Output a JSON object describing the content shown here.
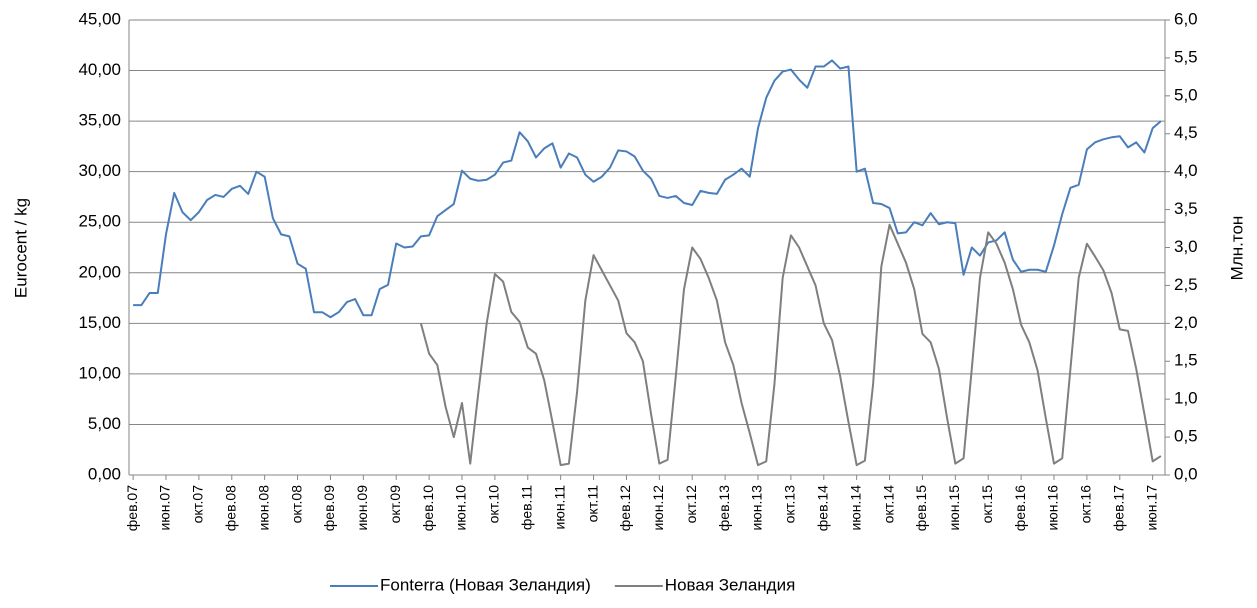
{
  "chart_data": {
    "type": "line",
    "y_label": "Eurocent / kg",
    "y2_label": "Млн.тон",
    "categories": [
      "фев.07",
      null,
      null,
      null,
      "июн.07",
      null,
      null,
      null,
      "окт.07",
      null,
      null,
      null,
      "фев.08",
      null,
      null,
      null,
      "июн.08",
      null,
      null,
      null,
      "окт.08",
      null,
      null,
      null,
      "фев.09",
      null,
      null,
      null,
      "июн.09",
      null,
      null,
      null,
      "окт.09",
      null,
      null,
      null,
      "фев.10",
      null,
      null,
      null,
      "июн.10",
      null,
      null,
      null,
      "окт.10",
      null,
      null,
      null,
      "фев.11",
      null,
      null,
      null,
      "июн.11",
      null,
      null,
      null,
      "окт.11",
      null,
      null,
      null,
      "фев.12",
      null,
      null,
      null,
      "июн.12",
      null,
      null,
      null,
      "окт.12",
      null,
      null,
      null,
      "фев.13",
      null,
      null,
      null,
      "июн.13",
      null,
      null,
      null,
      "окт.13",
      null,
      null,
      null,
      "фев.14",
      null,
      null,
      null,
      "июн.14",
      null,
      null,
      null,
      "окт.14",
      null,
      null,
      null,
      "фев.15",
      null,
      null,
      null,
      "июн.15",
      null,
      null,
      null,
      "окт.15",
      null,
      null,
      null,
      "фев.16",
      null,
      null,
      null,
      "июн.16",
      null,
      null,
      null,
      "окт.16",
      null,
      null,
      null,
      "фев.17",
      null,
      null,
      null,
      "июн.17",
      null
    ],
    "series": [
      {
        "name": "Fonterra (Новая Зеландия)",
        "color": "#4a7ebb",
        "values": [
          16.8,
          16.8,
          18,
          18,
          23.8,
          27.9,
          26,
          25.2,
          26,
          27.2,
          27.7,
          27.5,
          28.3,
          28.6,
          27.8,
          30,
          29.5,
          25.4,
          23.8,
          23.6,
          20.9,
          20.4,
          16.1,
          16.1,
          15.6,
          16.1,
          17.1,
          17.4,
          15.8,
          15.8,
          18.4,
          18.8,
          22.9,
          22.5,
          22.6,
          23.6,
          23.7,
          25.6,
          26.2,
          26.8,
          30.1,
          29.3,
          29.1,
          29.2,
          29.7,
          30.9,
          31.1,
          33.9,
          33,
          31.4,
          32.3,
          32.8,
          30.4,
          31.8,
          31.4,
          29.7,
          29,
          29.5,
          30.4,
          32.1,
          32,
          31.5,
          30.1,
          29.3,
          27.6,
          27.4,
          27.6,
          26.9,
          26.7,
          28.1,
          27.9,
          27.8,
          29.2,
          29.7,
          30.3,
          29.5,
          34.3,
          37.3,
          39,
          39.9,
          40.1,
          39.1,
          38.3,
          40.4,
          40.4,
          41,
          40.2,
          40.4,
          30,
          30.3,
          26.9,
          26.8,
          26.4,
          23.9,
          24,
          25,
          24.7,
          25.9,
          24.8,
          25,
          24.9,
          19.8,
          22.5,
          21.7,
          23,
          23.2,
          24,
          21.3,
          20.1,
          20.3,
          20.3,
          20.1,
          22.7,
          25.8,
          28.4,
          28.7,
          32.2,
          32.9,
          33.2,
          33.4,
          33.5,
          32.4,
          32.9,
          31.9,
          34.3,
          35
        ]
      },
      {
        "name": "Новая Зеландия",
        "color": "#7f7f7f",
        "axis": "y2",
        "values": [
          null,
          null,
          null,
          null,
          null,
          null,
          null,
          null,
          null,
          null,
          null,
          null,
          null,
          null,
          null,
          null,
          null,
          null,
          null,
          null,
          null,
          null,
          null,
          null,
          null,
          null,
          null,
          null,
          null,
          null,
          null,
          null,
          null,
          null,
          null,
          2.0,
          1.6,
          1.45,
          0.9,
          0.5,
          0.95,
          0.15,
          1.1,
          2.0,
          2.65,
          2.55,
          2.15,
          2.02,
          1.68,
          1.6,
          1.25,
          0.7,
          0.13,
          0.15,
          1.1,
          2.3,
          2.9,
          2.7,
          2.5,
          2.3,
          1.87,
          1.75,
          1.5,
          0.8,
          0.15,
          0.2,
          1.3,
          2.45,
          3.0,
          2.85,
          2.6,
          2.3,
          1.75,
          1.45,
          0.95,
          0.55,
          0.13,
          0.18,
          1.2,
          2.6,
          3.16,
          3.0,
          2.75,
          2.5,
          2.0,
          1.78,
          1.3,
          0.7,
          0.13,
          0.19,
          1.2,
          2.75,
          3.3,
          3.05,
          2.8,
          2.45,
          1.86,
          1.75,
          1.4,
          0.75,
          0.15,
          0.22,
          1.4,
          2.6,
          3.2,
          3.05,
          2.8,
          2.45,
          1.98,
          1.75,
          1.38,
          0.75,
          0.15,
          0.22,
          1.4,
          2.6,
          3.05,
          2.88,
          2.7,
          2.4,
          1.92,
          1.9,
          1.4,
          0.8,
          0.18,
          0.25
        ]
      }
    ],
    "ylim": [
      0,
      45
    ],
    "yticks": [
      {
        "value": 0,
        "label": "0,00"
      },
      {
        "value": 5,
        "label": "5,00"
      },
      {
        "value": 10,
        "label": "10,00"
      },
      {
        "value": 15,
        "label": "15,00"
      },
      {
        "value": 20,
        "label": "20,00"
      },
      {
        "value": 25,
        "label": "25,00"
      },
      {
        "value": 30,
        "label": "30,00"
      },
      {
        "value": 35,
        "label": "35,00"
      },
      {
        "value": 40,
        "label": "40,00"
      },
      {
        "value": 45,
        "label": "45,00"
      }
    ],
    "y2lim": [
      0,
      6
    ],
    "y2ticks": [
      {
        "value": 0,
        "label": "0,0"
      },
      {
        "value": 0.5,
        "label": "0,5"
      },
      {
        "value": 1,
        "label": "1,0"
      },
      {
        "value": 1.5,
        "label": "1,5"
      },
      {
        "value": 2,
        "label": "2,0"
      },
      {
        "value": 2.5,
        "label": "2,5"
      },
      {
        "value": 3,
        "label": "3,0"
      },
      {
        "value": 3.5,
        "label": "3,5"
      },
      {
        "value": 4,
        "label": "4,0"
      },
      {
        "value": 4.5,
        "label": "4,5"
      },
      {
        "value": 5,
        "label": "5,0"
      },
      {
        "value": 5.5,
        "label": "5,5"
      },
      {
        "value": 6,
        "label": "6,0"
      }
    ],
    "grid": true,
    "legend": "bottom"
  }
}
